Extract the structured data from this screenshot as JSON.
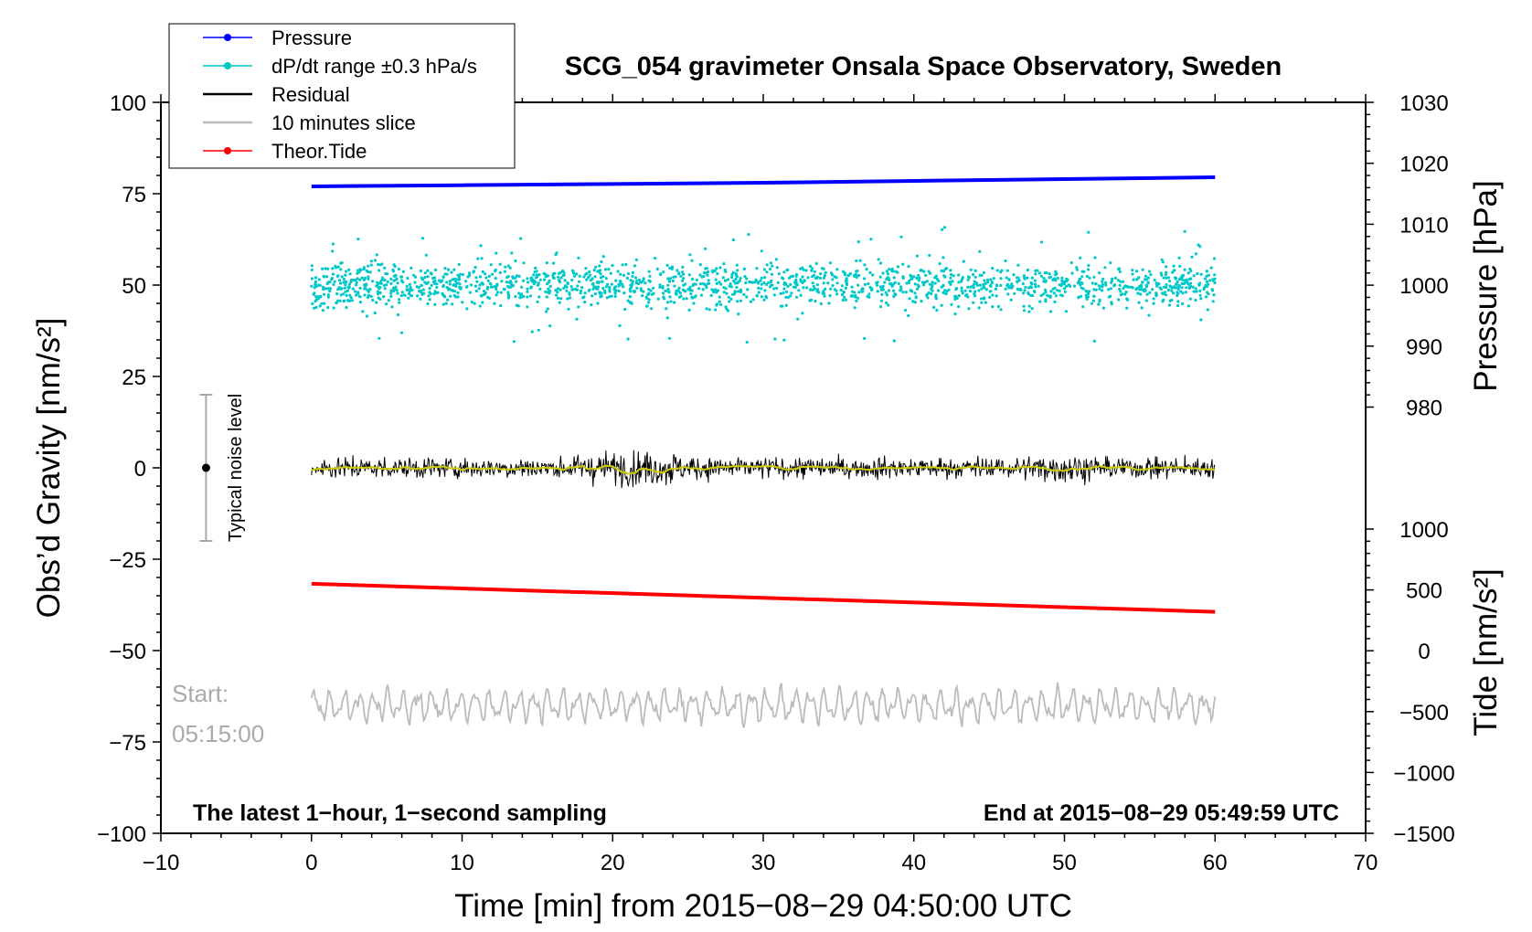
{
  "chart_data": {
    "type": "line",
    "title": "SCG_054 gravimeter Onsala Space Observatory, Sweden",
    "xlabel": "Time [min] from 2015−08−29 04:50:00 UTC",
    "ylabel_left": "Obs’d Gravity [nm/s²]",
    "ylabel_right_pressure": "Pressure [hPa]",
    "ylabel_right_tide": "Tide [nm/s²]",
    "xlim": [
      -10,
      70
    ],
    "ylim_left": [
      -100,
      100
    ],
    "x_ticks": [
      "−10",
      "0",
      "10",
      "20",
      "30",
      "40",
      "50",
      "60",
      "70"
    ],
    "y_left_ticks": [
      "100",
      "75",
      "50",
      "25",
      "0",
      "−25",
      "−50",
      "−75",
      "−100"
    ],
    "pressure_ticks": [
      "1030",
      "1020",
      "1010",
      "1000",
      "990",
      "980"
    ],
    "tide_ticks": [
      "1000",
      "500",
      "0",
      "−500",
      "−1000",
      "−1500"
    ],
    "note_left": "The latest 1−hour, 1−second sampling",
    "note_right": "End at 2015−08−29 05:49:59 UTC",
    "slice_start_label": "Start:",
    "slice_start_time": "05:15:00",
    "noise_label": "Typical noise level",
    "noise_bar": {
      "x": -7,
      "center": 0,
      "low": -20,
      "high": 20
    },
    "legend": [
      {
        "label": "Pressure",
        "color": "#0000ff",
        "marker": true
      },
      {
        "label": "dP/dt range ±0.3 hPa/s",
        "color": "#00c8c8",
        "marker": true
      },
      {
        "label": "Residual",
        "color": "#000000",
        "marker": false
      },
      {
        "label": "10 minutes slice",
        "color": "#bbbbbb",
        "marker": false
      },
      {
        "label": "Theor.Tide",
        "color": "#ff0000",
        "marker": true
      }
    ],
    "series": [
      {
        "name": "Pressure",
        "axis": "pressure",
        "x": [
          0,
          10,
          20,
          30,
          40,
          50,
          60
        ],
        "values": [
          1016.2,
          1016.4,
          1016.6,
          1016.8,
          1017.1,
          1017.4,
          1017.7
        ]
      },
      {
        "name": "dP/dt range ±0.3 hPa/s",
        "axis": "gravity",
        "center": 50,
        "x_range": [
          0,
          60
        ],
        "typical_spread": 5
      },
      {
        "name": "Residual",
        "axis": "gravity",
        "center": 0,
        "x_range": [
          0,
          60
        ],
        "typical_amplitude": 4
      },
      {
        "name": "Residual smoothed",
        "axis": "gravity",
        "color": "#cccc00",
        "center": 0,
        "x_range": [
          0,
          60
        ]
      },
      {
        "name": "Theor.Tide",
        "axis": "tide",
        "x": [
          0,
          60
        ],
        "values": [
          550,
          320
        ]
      },
      {
        "name": "10 minutes slice",
        "axis": "gravity",
        "center": -65,
        "x_range": [
          0,
          60
        ],
        "typical_amplitude": 5
      }
    ],
    "colors": {
      "pressure": "#0000ff",
      "dpdt": "#00c8c8",
      "residual": "#000000",
      "smoothed": "#cccc00",
      "tide": "#ff0000",
      "slice": "#bbbbbb",
      "noise": "#aaaaaa"
    }
  }
}
